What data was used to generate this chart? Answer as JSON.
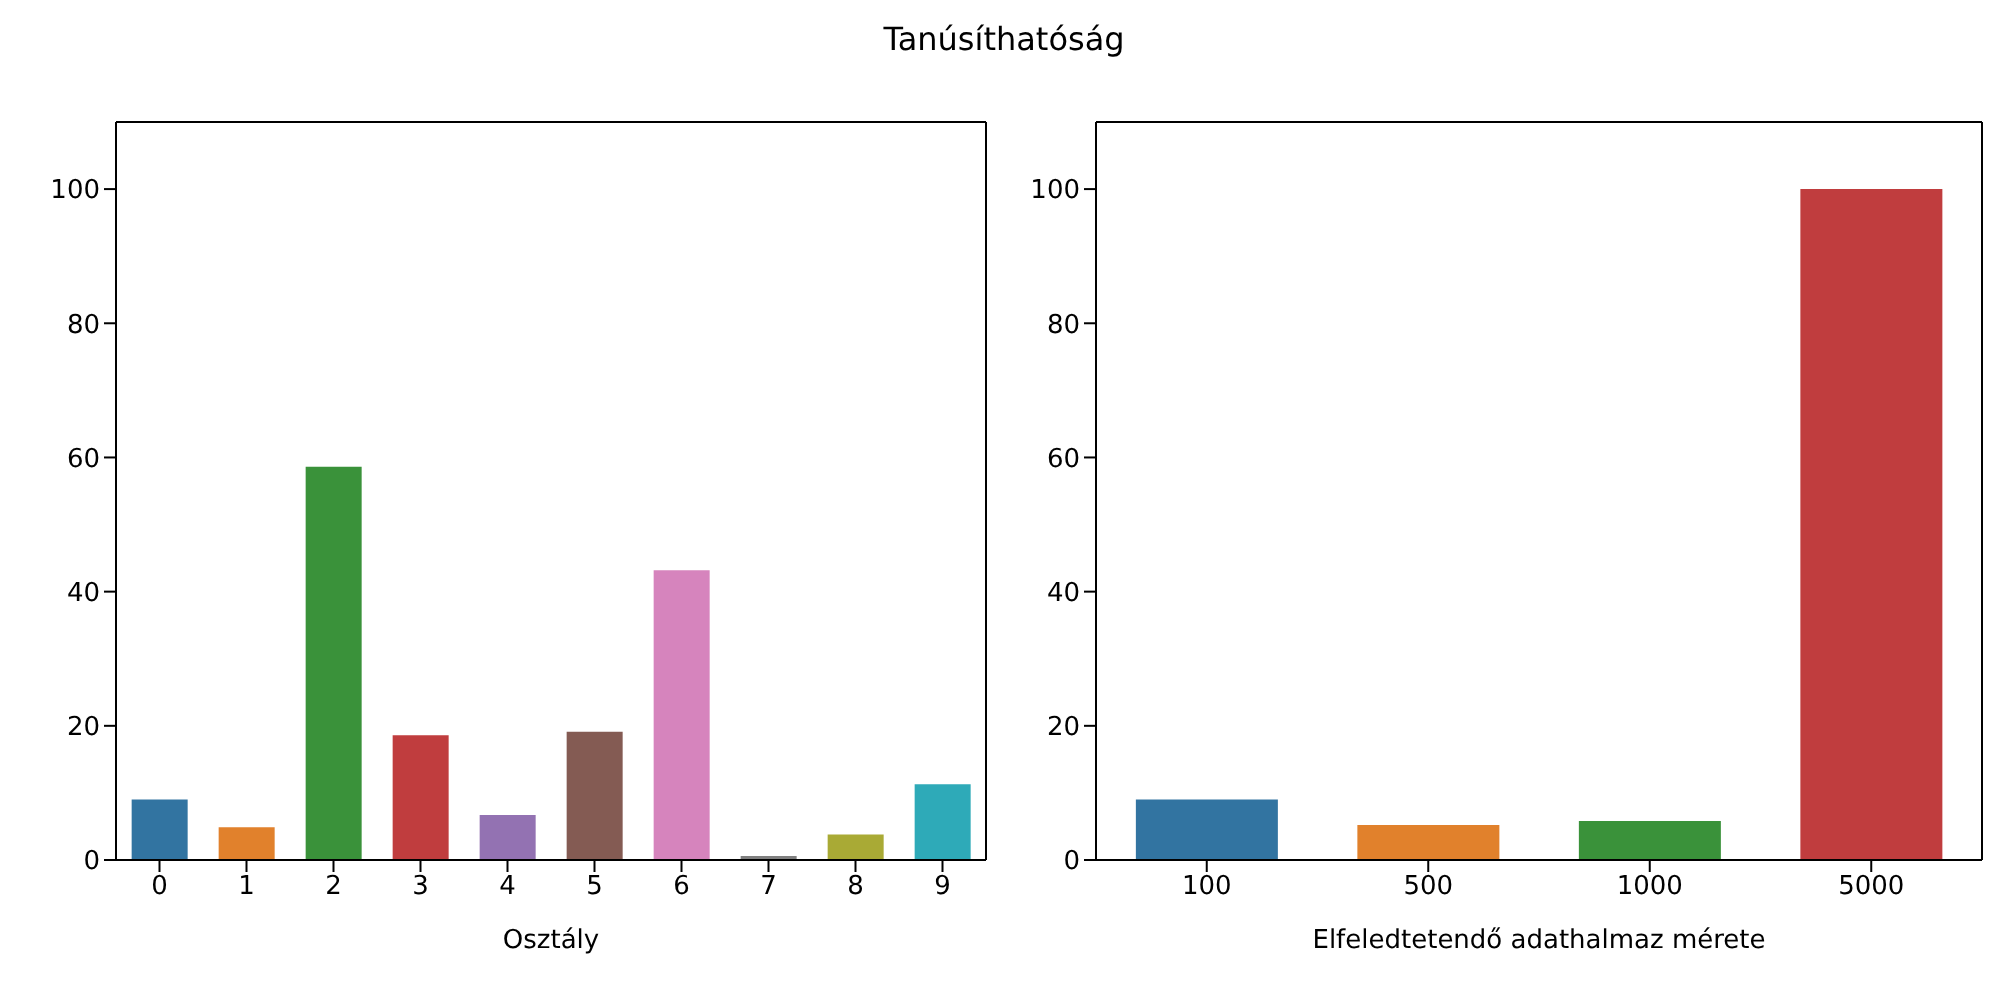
{
  "chart_data": [
    {
      "type": "bar",
      "title": "Tanúsíthatóság",
      "xlabel": "Osztály",
      "categories": [
        "0",
        "1",
        "2",
        "3",
        "4",
        "5",
        "6",
        "7",
        "8",
        "9"
      ],
      "values": [
        9.0,
        4.9,
        58.6,
        18.6,
        6.7,
        19.1,
        43.2,
        0.6,
        3.8,
        11.3
      ],
      "colors": [
        "#3274a1",
        "#e1812c",
        "#3a923a",
        "#c03d3e",
        "#9372b2",
        "#845b53",
        "#d684bd",
        "#7f7f7f",
        "#a9aa35",
        "#2eaab8"
      ],
      "ylim": [
        0,
        110
      ],
      "yticks": [
        0,
        20,
        40,
        60,
        80,
        100
      ],
      "grid": false
    },
    {
      "type": "bar",
      "xlabel": "Elfeledtetendő adathalmaz mérete",
      "categories": [
        "100",
        "500",
        "1000",
        "5000"
      ],
      "values": [
        9.0,
        5.2,
        5.8,
        100
      ],
      "colors": [
        "#3274a1",
        "#e1812c",
        "#3a923a",
        "#c03d3e"
      ],
      "ylim": [
        0,
        110
      ],
      "yticks": [
        0,
        20,
        40,
        60,
        80,
        100
      ],
      "grid": false
    }
  ]
}
